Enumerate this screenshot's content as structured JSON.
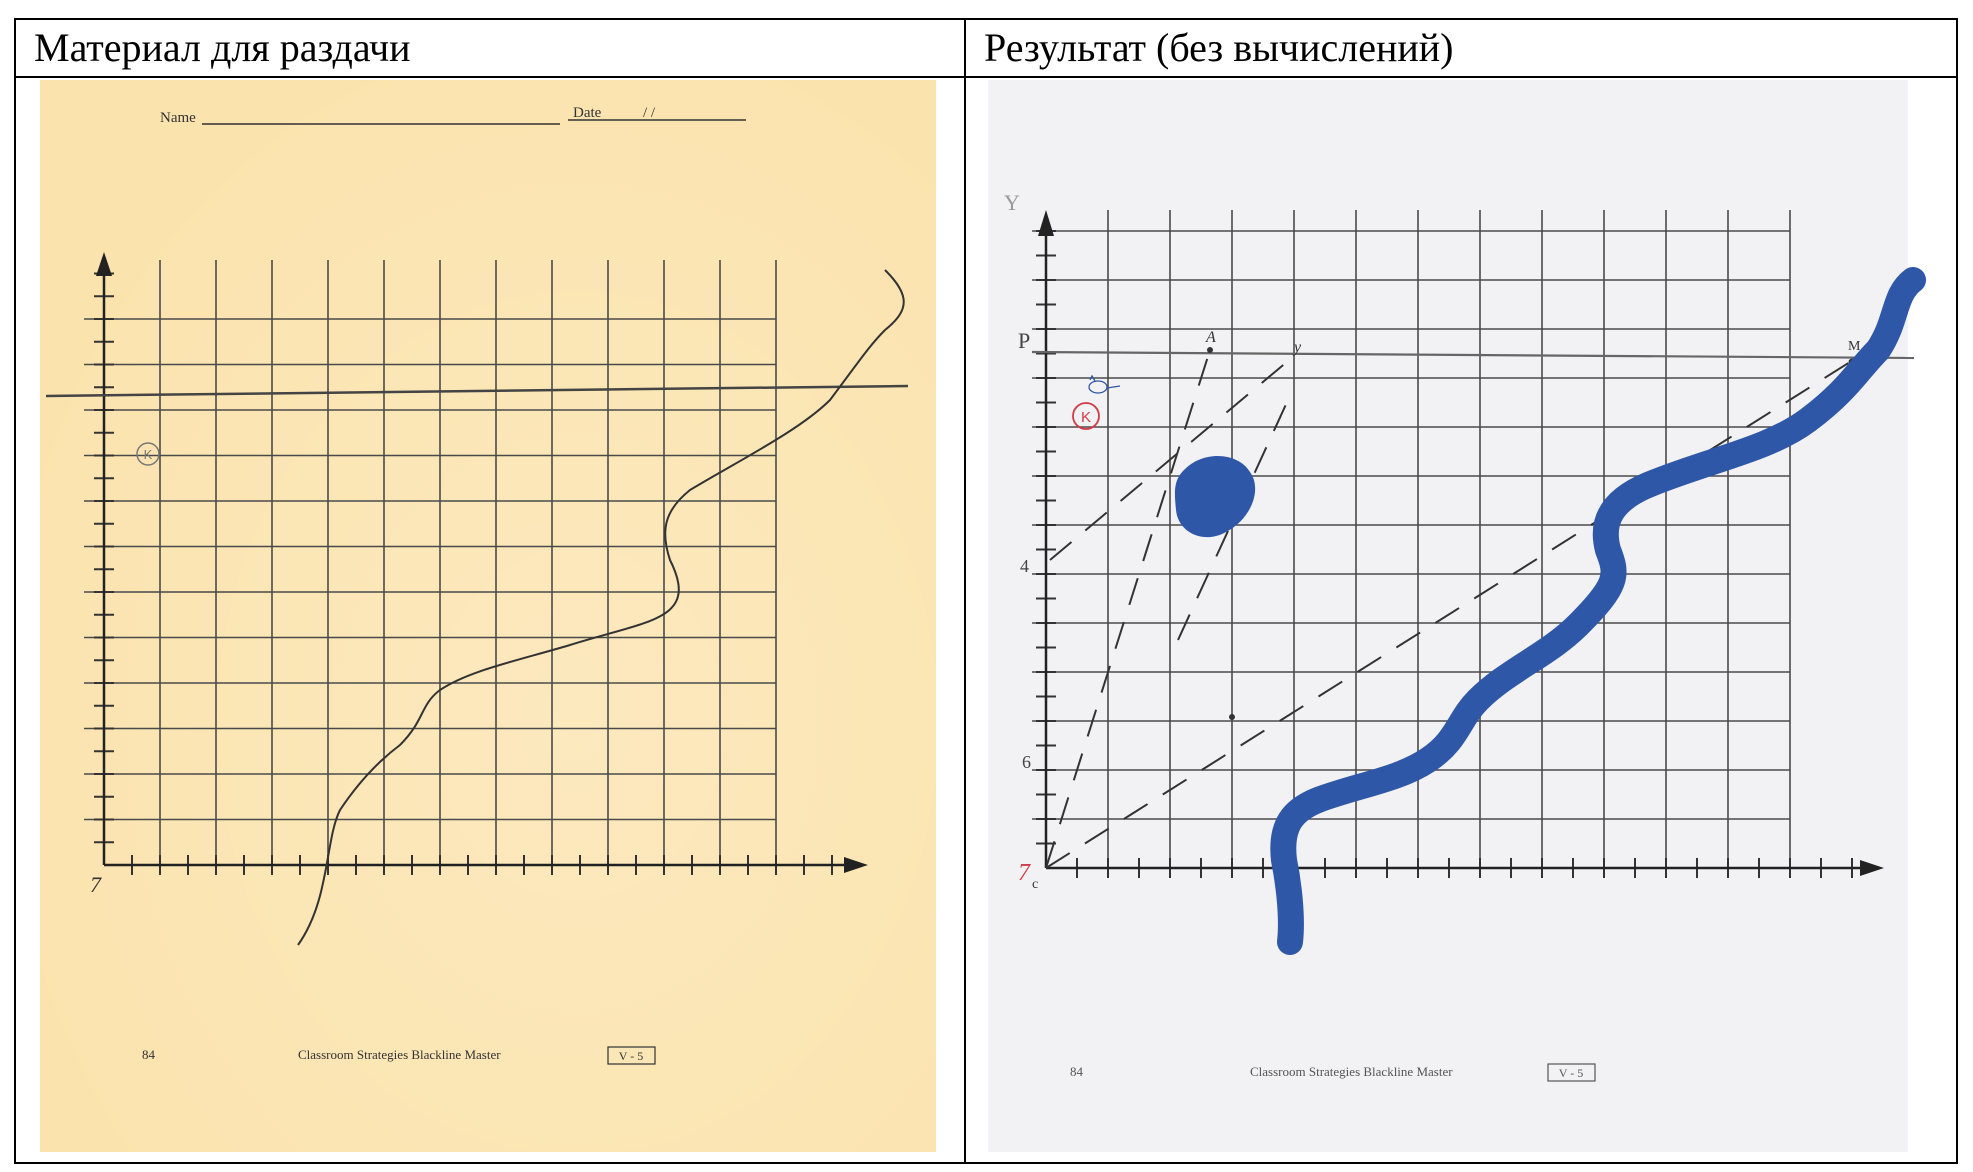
{
  "table": {
    "headers": [
      "Материал для раздачи",
      "Результат (без вычислений)"
    ]
  },
  "handout": {
    "name_label": "Name",
    "date_label": "Date",
    "date_slashes": "/ /",
    "page_number": "84",
    "footer_text": "Classroom Strategies Blackline Master",
    "footer_code": "V - 5",
    "origin_label": "7",
    "point_label": "K"
  },
  "result": {
    "page_number": "84",
    "footer_text": "Classroom Strategies Blackline Master",
    "footer_code": "V - 5",
    "origin_label": "7",
    "origin_sub": "c",
    "axis_y_label": "Y",
    "point_label": "K",
    "label_A": "A",
    "label_y": "y",
    "label_M": "M",
    "label_P": "P",
    "label_4": "4",
    "label_6": "6"
  },
  "colors": {
    "handout_paper": "#fbe3ad",
    "result_paper": "#f2f1f3",
    "ink": "#2b2b2b",
    "blue_marker": "#2f57a8",
    "red_pen": "#d23b48"
  }
}
